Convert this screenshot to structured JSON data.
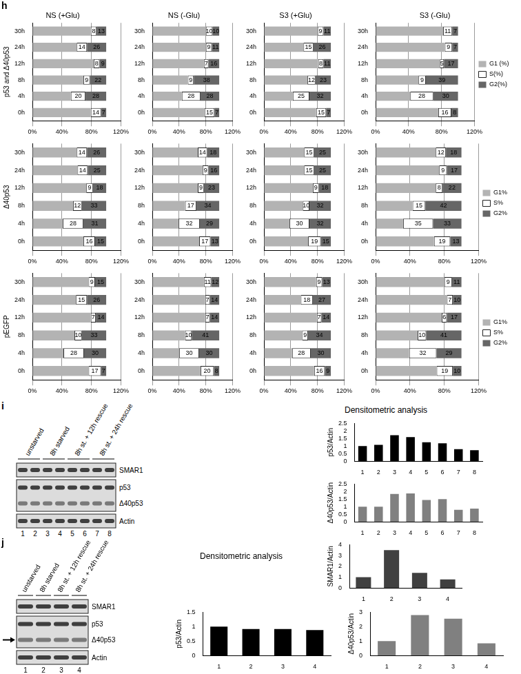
{
  "chart_data": [
    {
      "type": "bar",
      "orientation": "horizontal",
      "stacked": true,
      "title": "NS (+Glu)",
      "ylabel": "p53 and Δ40p53",
      "categories": [
        "30h",
        "24h",
        "12h",
        "8h",
        "4h",
        "0h"
      ],
      "series": [
        {
          "color": "#b3b3b3",
          "data_labels": false,
          "values": [
            79,
            60,
            83,
            69,
            52,
            79
          ]
        },
        {
          "color": "#ffffff",
          "data_labels": true,
          "values": [
            8,
            14,
            8,
            9,
            20,
            14
          ]
        },
        {
          "color": "#666666",
          "data_labels": true,
          "values": [
            13,
            26,
            9,
            22,
            28,
            7
          ]
        }
      ],
      "xlim": [
        0,
        120
      ],
      "xticks": [
        {
          "value": 0,
          "label": "0%"
        },
        {
          "value": 40,
          "label": "40%"
        },
        {
          "value": 80,
          "label": "80%"
        },
        {
          "value": 120,
          "label": "120%"
        }
      ],
      "grid": true
    },
    {
      "type": "bar",
      "orientation": "horizontal",
      "stacked": true,
      "title": "NS (-Glu)",
      "categories": [
        "30h",
        "24h",
        "12h",
        "8h",
        "4h",
        "0h"
      ],
      "series": [
        {
          "color": "#b3b3b3",
          "data_labels": false,
          "values": [
            80,
            80,
            77,
            53,
            44,
            78
          ]
        },
        {
          "color": "#ffffff",
          "data_labels": true,
          "values": [
            10,
            9,
            7,
            9,
            28,
            15
          ]
        },
        {
          "color": "#666666",
          "data_labels": true,
          "values": [
            10,
            11,
            16,
            38,
            28,
            7
          ]
        }
      ],
      "xlim": [
        0,
        120
      ],
      "xticks": [
        {
          "value": 0,
          "label": "0%"
        },
        {
          "value": 40,
          "label": "40%"
        },
        {
          "value": 80,
          "label": "80%"
        },
        {
          "value": 120,
          "label": "120%"
        }
      ],
      "grid": true
    },
    {
      "type": "bar",
      "orientation": "horizontal",
      "stacked": true,
      "title": "S3 (+Glu)",
      "categories": [
        "30h",
        "24h",
        "12h",
        "8h",
        "4h",
        "0h"
      ],
      "series": [
        {
          "color": "#b3b3b3",
          "data_labels": false,
          "values": [
            80,
            59,
            81,
            65,
            43,
            78
          ]
        },
        {
          "color": "#ffffff",
          "data_labels": true,
          "values": [
            9,
            15,
            8,
            12,
            25,
            15
          ]
        },
        {
          "color": "#666666",
          "data_labels": true,
          "values": [
            11,
            26,
            11,
            23,
            32,
            7
          ]
        }
      ],
      "xlim": [
        0,
        120
      ],
      "xticks": [
        {
          "value": 0,
          "label": "0%"
        },
        {
          "value": 40,
          "label": "40%"
        },
        {
          "value": 80,
          "label": "80%"
        },
        {
          "value": 120,
          "label": "120%"
        }
      ],
      "grid": true
    },
    {
      "type": "bar",
      "orientation": "horizontal",
      "stacked": true,
      "title": "S3 (-Glu)",
      "legend": "right",
      "categories": [
        "30h",
        "24h",
        "12h",
        "8h",
        "4h",
        "0h"
      ],
      "series": [
        {
          "name": "G1 (%)",
          "color": "#b3b3b3",
          "data_labels": false,
          "values": [
            82,
            84,
            78,
            52,
            42,
            76
          ]
        },
        {
          "name": "S(%)",
          "color": "#ffffff",
          "data_labels": true,
          "values": [
            11,
            9,
            5,
            9,
            28,
            16
          ]
        },
        {
          "name": "G2(%)",
          "color": "#666666",
          "data_labels": true,
          "values": [
            7,
            7,
            17,
            39,
            30,
            8
          ]
        }
      ],
      "xlim": [
        0,
        120
      ],
      "xticks": [
        {
          "value": 0,
          "label": "0%"
        },
        {
          "value": 40,
          "label": "40%"
        },
        {
          "value": 80,
          "label": "80%"
        },
        {
          "value": 120,
          "label": "120%"
        }
      ],
      "grid": true
    },
    {
      "type": "bar",
      "orientation": "horizontal",
      "stacked": true,
      "ylabel": "Δ40p53",
      "categories": [
        "30h",
        "24h",
        "12h",
        "8h",
        "4h",
        "0h"
      ],
      "series": [
        {
          "color": "#b3b3b3",
          "data_labels": false,
          "values": [
            60,
            61,
            73,
            55,
            41,
            69
          ]
        },
        {
          "color": "#ffffff",
          "data_labels": true,
          "values": [
            14,
            14,
            9,
            12,
            28,
            16
          ]
        },
        {
          "color": "#666666",
          "data_labels": true,
          "values": [
            26,
            25,
            18,
            33,
            31,
            15
          ]
        }
      ],
      "xlim": [
        0,
        120
      ],
      "xticks": [
        {
          "value": 0,
          "label": "0%"
        },
        {
          "value": 40,
          "label": "40%"
        },
        {
          "value": 80,
          "label": "80%"
        },
        {
          "value": 120,
          "label": "120%"
        }
      ],
      "grid": true
    },
    {
      "type": "bar",
      "orientation": "horizontal",
      "stacked": true,
      "categories": [
        "30h",
        "24h",
        "12h",
        "8h",
        "4h",
        "0h"
      ],
      "series": [
        {
          "color": "#b3b3b3",
          "data_labels": false,
          "values": [
            68,
            75,
            68,
            49,
            39,
            70
          ]
        },
        {
          "color": "#ffffff",
          "data_labels": true,
          "values": [
            14,
            9,
            9,
            17,
            32,
            17
          ]
        },
        {
          "color": "#666666",
          "data_labels": true,
          "values": [
            18,
            16,
            23,
            34,
            29,
            13
          ]
        }
      ],
      "xlim": [
        0,
        120
      ],
      "xticks": [
        {
          "value": 0,
          "label": "0%"
        },
        {
          "value": 40,
          "label": "40%"
        },
        {
          "value": 80,
          "label": "80%"
        },
        {
          "value": 120,
          "label": "120%"
        }
      ],
      "grid": true
    },
    {
      "type": "bar",
      "orientation": "horizontal",
      "stacked": true,
      "categories": [
        "30h",
        "24h",
        "12h",
        "8h",
        "4h",
        "0h"
      ],
      "series": [
        {
          "color": "#b3b3b3",
          "data_labels": false,
          "values": [
            60,
            60,
            73,
            58,
            38,
            66
          ]
        },
        {
          "color": "#ffffff",
          "data_labels": true,
          "values": [
            15,
            15,
            9,
            10,
            30,
            19
          ]
        },
        {
          "color": "#666666",
          "data_labels": true,
          "values": [
            25,
            25,
            18,
            32,
            32,
            15
          ]
        }
      ],
      "xlim": [
        0,
        120
      ],
      "xticks": [
        {
          "value": 0,
          "label": "0%"
        },
        {
          "value": 40,
          "label": "40%"
        },
        {
          "value": 80,
          "label": "80%"
        },
        {
          "value": 120,
          "label": "120%"
        }
      ],
      "grid": true
    },
    {
      "type": "bar",
      "orientation": "horizontal",
      "stacked": true,
      "legend": "right",
      "categories": [
        "30h",
        "24h",
        "12h",
        "8h",
        "4h",
        "0h"
      ],
      "series": [
        {
          "name": "G1%",
          "color": "#b3b3b3",
          "data_labels": false,
          "values": [
            70,
            74,
            70,
            43,
            32,
            68
          ]
        },
        {
          "name": "S%",
          "color": "#ffffff",
          "data_labels": true,
          "values": [
            12,
            9,
            8,
            15,
            35,
            19
          ]
        },
        {
          "name": "G2%",
          "color": "#666666",
          "data_labels": true,
          "values": [
            18,
            17,
            22,
            42,
            33,
            13
          ]
        }
      ],
      "xlim": [
        0,
        120
      ],
      "xticks": [
        {
          "value": 0,
          "label": "0%"
        },
        {
          "value": 40,
          "label": "40%"
        },
        {
          "value": 80,
          "label": "80%"
        },
        {
          "value": 120,
          "label": "120%"
        }
      ],
      "grid": true
    },
    {
      "type": "bar",
      "orientation": "horizontal",
      "stacked": true,
      "ylabel": "pEGFP",
      "categories": [
        "30h",
        "24h",
        "12h",
        "8h",
        "4h",
        "0h"
      ],
      "series": [
        {
          "color": "#b3b3b3",
          "data_labels": false,
          "values": [
            76,
            59,
            79,
            57,
            42,
            76
          ]
        },
        {
          "color": "#ffffff",
          "data_labels": true,
          "values": [
            9,
            15,
            7,
            10,
            28,
            17
          ]
        },
        {
          "color": "#666666",
          "data_labels": true,
          "values": [
            15,
            26,
            14,
            33,
            30,
            7
          ]
        }
      ],
      "xlim": [
        0,
        120
      ],
      "xticks": [
        {
          "value": 0,
          "label": "0%"
        },
        {
          "value": 40,
          "label": "40%"
        },
        {
          "value": 80,
          "label": "80%"
        },
        {
          "value": 120,
          "label": "120%"
        }
      ],
      "grid": true
    },
    {
      "type": "bar",
      "orientation": "horizontal",
      "stacked": true,
      "categories": [
        "30h",
        "24h",
        "12h",
        "8h",
        "4h",
        "0h"
      ],
      "series": [
        {
          "color": "#b3b3b3",
          "data_labels": false,
          "values": [
            77,
            79,
            79,
            49,
            40,
            72
          ]
        },
        {
          "color": "#ffffff",
          "data_labels": true,
          "values": [
            11,
            7,
            7,
            10,
            30,
            20
          ]
        },
        {
          "color": "#666666",
          "data_labels": true,
          "values": [
            12,
            14,
            14,
            41,
            30,
            8
          ]
        }
      ],
      "xlim": [
        0,
        120
      ],
      "xticks": [
        {
          "value": 0,
          "label": "0%"
        },
        {
          "value": 40,
          "label": "40%"
        },
        {
          "value": 80,
          "label": "80%"
        },
        {
          "value": 120,
          "label": "120%"
        }
      ],
      "grid": true
    },
    {
      "type": "bar",
      "orientation": "horizontal",
      "stacked": true,
      "categories": [
        "30h",
        "24h",
        "12h",
        "8h",
        "4h",
        "0h"
      ],
      "series": [
        {
          "color": "#b3b3b3",
          "data_labels": false,
          "values": [
            78,
            55,
            79,
            57,
            42,
            75
          ]
        },
        {
          "color": "#ffffff",
          "data_labels": true,
          "values": [
            9,
            18,
            7,
            9,
            28,
            16
          ]
        },
        {
          "color": "#666666",
          "data_labels": true,
          "values": [
            13,
            27,
            14,
            34,
            30,
            9
          ]
        }
      ],
      "xlim": [
        0,
        120
      ],
      "xticks": [
        {
          "value": 0,
          "label": "0%"
        },
        {
          "value": 40,
          "label": "40%"
        },
        {
          "value": 80,
          "label": "80%"
        },
        {
          "value": 120,
          "label": "120%"
        }
      ],
      "grid": true
    },
    {
      "type": "bar",
      "orientation": "horizontal",
      "stacked": true,
      "legend": "right",
      "categories": [
        "30h",
        "24h",
        "12h",
        "8h",
        "4h",
        "0h"
      ],
      "series": [
        {
          "name": "G1%",
          "color": "#b3b3b3",
          "data_labels": false,
          "values": [
            80,
            83,
            77,
            49,
            39,
            71
          ]
        },
        {
          "name": "S%",
          "color": "#ffffff",
          "data_labels": true,
          "values": [
            9,
            7,
            6,
            10,
            32,
            19
          ]
        },
        {
          "name": "G2%",
          "color": "#666666",
          "data_labels": true,
          "values": [
            11,
            10,
            17,
            41,
            29,
            10
          ]
        }
      ],
      "xlim": [
        0,
        120
      ],
      "xticks": [
        {
          "value": 0,
          "label": "0%"
        },
        {
          "value": 40,
          "label": "40%"
        },
        {
          "value": 80,
          "label": "80%"
        },
        {
          "value": 120,
          "label": "120%"
        }
      ],
      "grid": true
    },
    {
      "type": "bar",
      "ylabel": "p53/Actin",
      "categories": [
        "1",
        "2",
        "3",
        "4",
        "5",
        "6",
        "7",
        "8"
      ],
      "values": [
        1,
        1.08,
        1.72,
        1.6,
        1.25,
        1.18,
        0.8,
        0.73
      ],
      "color": "#000000",
      "ylim": [
        0,
        2.5
      ],
      "yticks": [
        0,
        0.5,
        1,
        1.5,
        2,
        2.5
      ],
      "grid": false
    },
    {
      "type": "bar",
      "ylabel": "Δ40p53/Actin",
      "categories": [
        "1",
        "2",
        "3",
        "4",
        "5",
        "6",
        "7",
        "8"
      ],
      "values": [
        1,
        1,
        1.85,
        1.88,
        1.45,
        1.5,
        0.8,
        0.88
      ],
      "color": "#808080",
      "ylim": [
        0,
        2.5
      ],
      "yticks": [
        0,
        0.5,
        1,
        1.5,
        2,
        2.5
      ],
      "grid": false
    },
    {
      "type": "bar",
      "ylabel": "SMAR1/Actin",
      "categories": [
        "1",
        "2",
        "3",
        "4"
      ],
      "values": [
        1,
        3.5,
        1.4,
        0.8
      ],
      "color": "#404040",
      "ylim": [
        0,
        4
      ],
      "yticks": [
        0,
        1,
        2,
        3,
        4
      ],
      "grid": false
    },
    {
      "type": "bar",
      "ylabel": "p53/Actin",
      "categories": [
        "1",
        "2",
        "3",
        "4"
      ],
      "values": [
        1,
        0.92,
        0.92,
        0.88
      ],
      "color": "#000000",
      "ylim": [
        0,
        1.5
      ],
      "yticks": [
        0,
        0.5,
        1,
        1.5
      ],
      "grid": false
    },
    {
      "type": "bar",
      "ylabel": "Δ40p53/Actin",
      "categories": [
        "1",
        "2",
        "3",
        "4"
      ],
      "values": [
        1,
        2.8,
        2.55,
        0.85
      ],
      "color": "#808080",
      "ylim": [
        0,
        3
      ],
      "yticks": [
        0,
        1,
        2,
        3
      ],
      "grid": false
    }
  ],
  "figure": {
    "panels": [
      {
        "letter": "h"
      },
      {
        "letter": "i",
        "heading": "Densitometric analysis",
        "blot": {
          "groups": [
            "unstarved",
            "8h starved",
            "8h st. + 12h rescue",
            "8h st. + 24h rescue"
          ],
          "lanes": [
            "1",
            "2",
            "3",
            "4",
            "5",
            "6",
            "7",
            "8"
          ],
          "bands": [
            "SMAR1",
            "p53",
            "Δ40p53",
            "Actin"
          ]
        }
      },
      {
        "letter": "j",
        "heading": "Densitometric analysis",
        "blot": {
          "groups": [
            "unstarved",
            "8h starved",
            "8h st. + 12h rescue",
            "8h st. + 24h rescue"
          ],
          "lanes": [
            "1",
            "2",
            "3",
            "4"
          ],
          "bands": [
            "SMAR1",
            "p53",
            "Δ40p53",
            "Actin"
          ]
        }
      }
    ]
  }
}
